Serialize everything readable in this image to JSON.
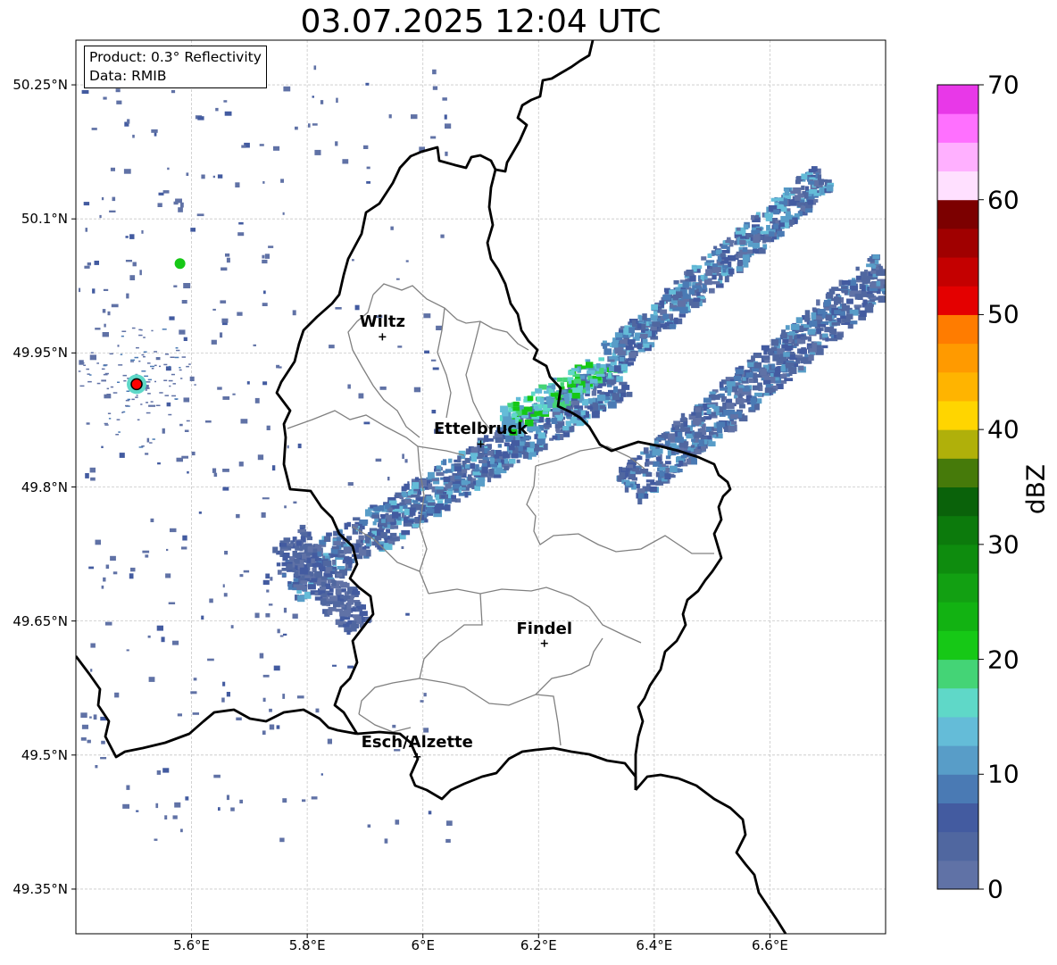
{
  "title": "03.07.2025 12:04 UTC",
  "info_box": {
    "product": "Product: 0.3° Reflectivity",
    "data_source": "Data: RMIB"
  },
  "axes": {
    "lon_range": [
      5.4,
      6.8
    ],
    "lat_range": [
      49.3,
      50.3
    ],
    "lat_ticks": [
      {
        "value": 50.25,
        "label": "50.25°N"
      },
      {
        "value": 50.1,
        "label": "50.1°N"
      },
      {
        "value": 49.95,
        "label": "49.95°N"
      },
      {
        "value": 49.8,
        "label": "49.8°N"
      },
      {
        "value": 49.65,
        "label": "49.65°N"
      },
      {
        "value": 49.5,
        "label": "49.5°N"
      },
      {
        "value": 49.35,
        "label": "49.35°N"
      }
    ],
    "lon_ticks": [
      {
        "value": 5.6,
        "label": "5.6°E"
      },
      {
        "value": 5.8,
        "label": "5.8°E"
      },
      {
        "value": 6.0,
        "label": "6°E"
      },
      {
        "value": 6.2,
        "label": "6.2°E"
      },
      {
        "value": 6.4,
        "label": "6.4°E"
      },
      {
        "value": 6.6,
        "label": "6.6°E"
      }
    ],
    "grid": true
  },
  "cities": [
    {
      "name": "Wiltz",
      "lon": 5.93,
      "lat": 49.968
    },
    {
      "name": "Ettelbruck",
      "lon": 6.1,
      "lat": 49.848
    },
    {
      "name": "Findel",
      "lon": 6.21,
      "lat": 49.625
    },
    {
      "name": "Esch/Alzette",
      "lon": 5.99,
      "lat": 49.498
    }
  ],
  "radar_site": {
    "lon": 5.505,
    "lat": 49.915,
    "color": "#ff0000"
  },
  "colorbar": {
    "label": "dBZ",
    "min": 0,
    "max": 70,
    "ticks": [
      "0",
      "10",
      "20",
      "30",
      "40",
      "50",
      "60",
      "70"
    ],
    "colors": [
      "#6072a6",
      "#5067a0",
      "#435ba0",
      "#4a7ab4",
      "#589dc8",
      "#64bcd8",
      "#5fd8c8",
      "#44d476",
      "#16c816",
      "#12b212",
      "#12a012",
      "#0e8c0e",
      "#0c7a0c",
      "#0a620a",
      "#467a0a",
      "#b0b00a",
      "#ffd500",
      "#ffb400",
      "#ff9a00",
      "#ff7c00",
      "#e40000",
      "#c40000",
      "#a00000",
      "#7c0000",
      "#ffe0ff",
      "#ffb0ff",
      "#ff70ff",
      "#e838e8"
    ]
  }
}
